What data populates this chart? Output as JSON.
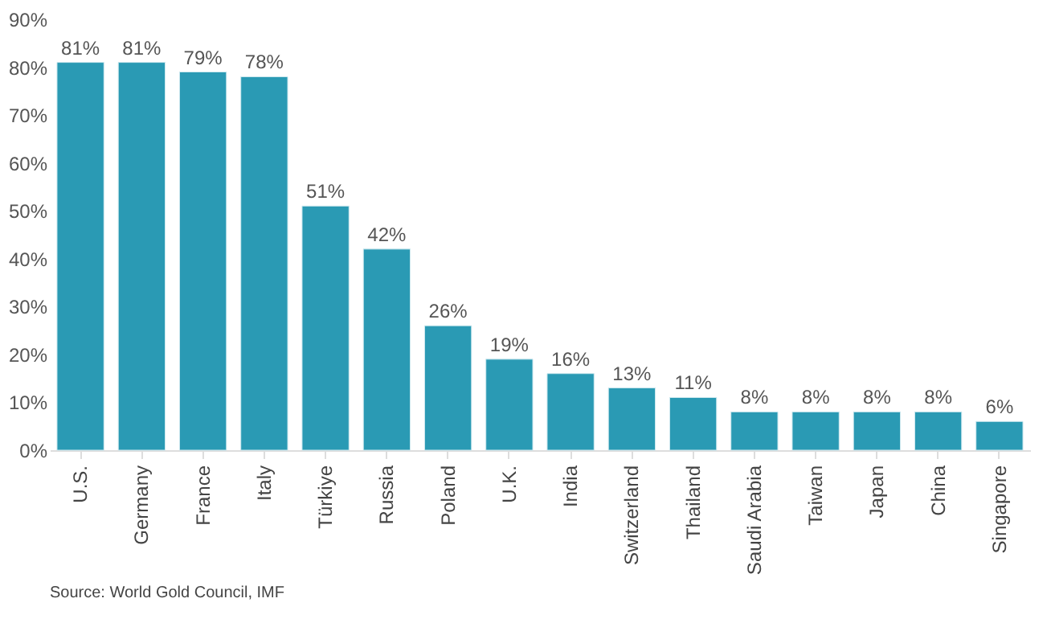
{
  "chart_data": {
    "type": "bar",
    "categories": [
      "U.S.",
      "Germany",
      "France",
      "Italy",
      "Türkiye",
      "Russia",
      "Poland",
      "U.K.",
      "India",
      "Switzerland",
      "Thailand",
      "Saudi Arabia",
      "Taiwan",
      "Japan",
      "China",
      "Singapore"
    ],
    "values": [
      81,
      81,
      79,
      78,
      51,
      42,
      26,
      19,
      16,
      13,
      11,
      8,
      8,
      8,
      8,
      6
    ],
    "value_labels": [
      "81%",
      "81%",
      "79%",
      "78%",
      "51%",
      "42%",
      "26%",
      "19%",
      "16%",
      "13%",
      "11%",
      "8%",
      "8%",
      "8%",
      "8%",
      "6%"
    ],
    "color": "#2a9ab4",
    "ylim": [
      0,
      90
    ],
    "yticks": [
      {
        "value": 0,
        "label": "0%"
      },
      {
        "value": 10,
        "label": "10%"
      },
      {
        "value": 20,
        "label": "20%"
      },
      {
        "value": 30,
        "label": "30%"
      },
      {
        "value": 40,
        "label": "40%"
      },
      {
        "value": 50,
        "label": "50%"
      },
      {
        "value": 60,
        "label": "60%"
      },
      {
        "value": 70,
        "label": "70%"
      },
      {
        "value": 80,
        "label": "80%"
      },
      {
        "value": 90,
        "label": "90%"
      }
    ],
    "grid": false,
    "annotations": [
      "Source: World Gold Council, IMF"
    ]
  }
}
